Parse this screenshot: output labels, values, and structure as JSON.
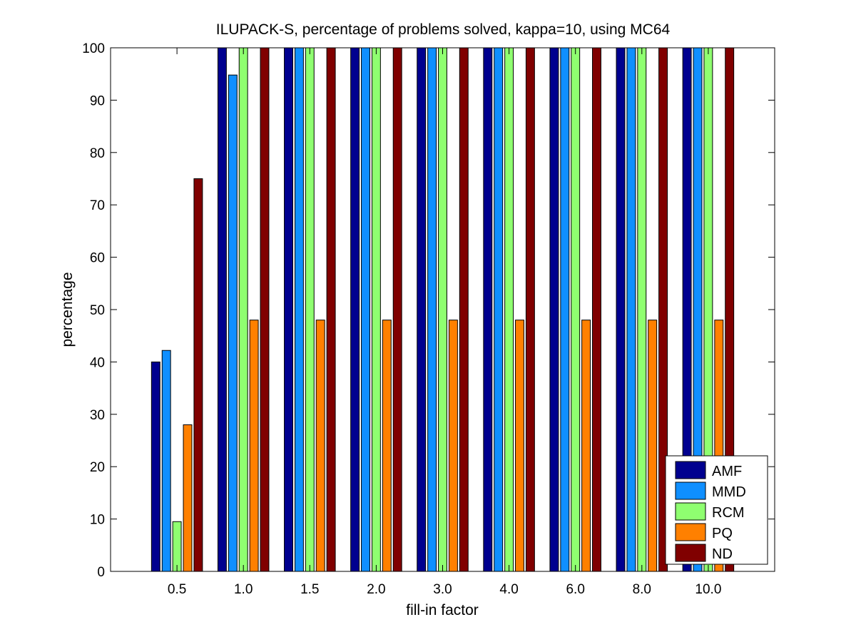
{
  "chart_data": {
    "type": "bar",
    "title": "ILUPACK-S, percentage of problems solved, kappa=10, using MC64",
    "xlabel": "fill-in factor",
    "ylabel": "percentage",
    "categories": [
      "0.5",
      "1.0",
      "1.5",
      "2.0",
      "3.0",
      "4.0",
      "6.0",
      "8.0",
      "10.0"
    ],
    "ylim": [
      0,
      100
    ],
    "yticks": [
      0,
      10,
      20,
      30,
      40,
      50,
      60,
      70,
      80,
      90,
      100
    ],
    "grid": false,
    "legend_position": "bottom-right",
    "series": [
      {
        "name": "AMF",
        "color": "#00008f",
        "values": [
          40,
          100,
          100,
          100,
          100,
          100,
          100,
          100,
          100
        ]
      },
      {
        "name": "MMD",
        "color": "#0f8fff",
        "values": [
          42.2,
          94.8,
          100,
          100,
          100,
          100,
          100,
          100,
          100
        ]
      },
      {
        "name": "RCM",
        "color": "#8fff70",
        "values": [
          9.5,
          100,
          100,
          100,
          100,
          100,
          100,
          100,
          100
        ]
      },
      {
        "name": "PQ",
        "color": "#ff8000",
        "values": [
          28,
          48,
          48,
          48,
          48,
          48,
          48,
          48,
          48
        ]
      },
      {
        "name": "ND",
        "color": "#800000",
        "values": [
          75,
          100,
          100,
          100,
          100,
          100,
          100,
          100,
          100
        ]
      }
    ]
  }
}
